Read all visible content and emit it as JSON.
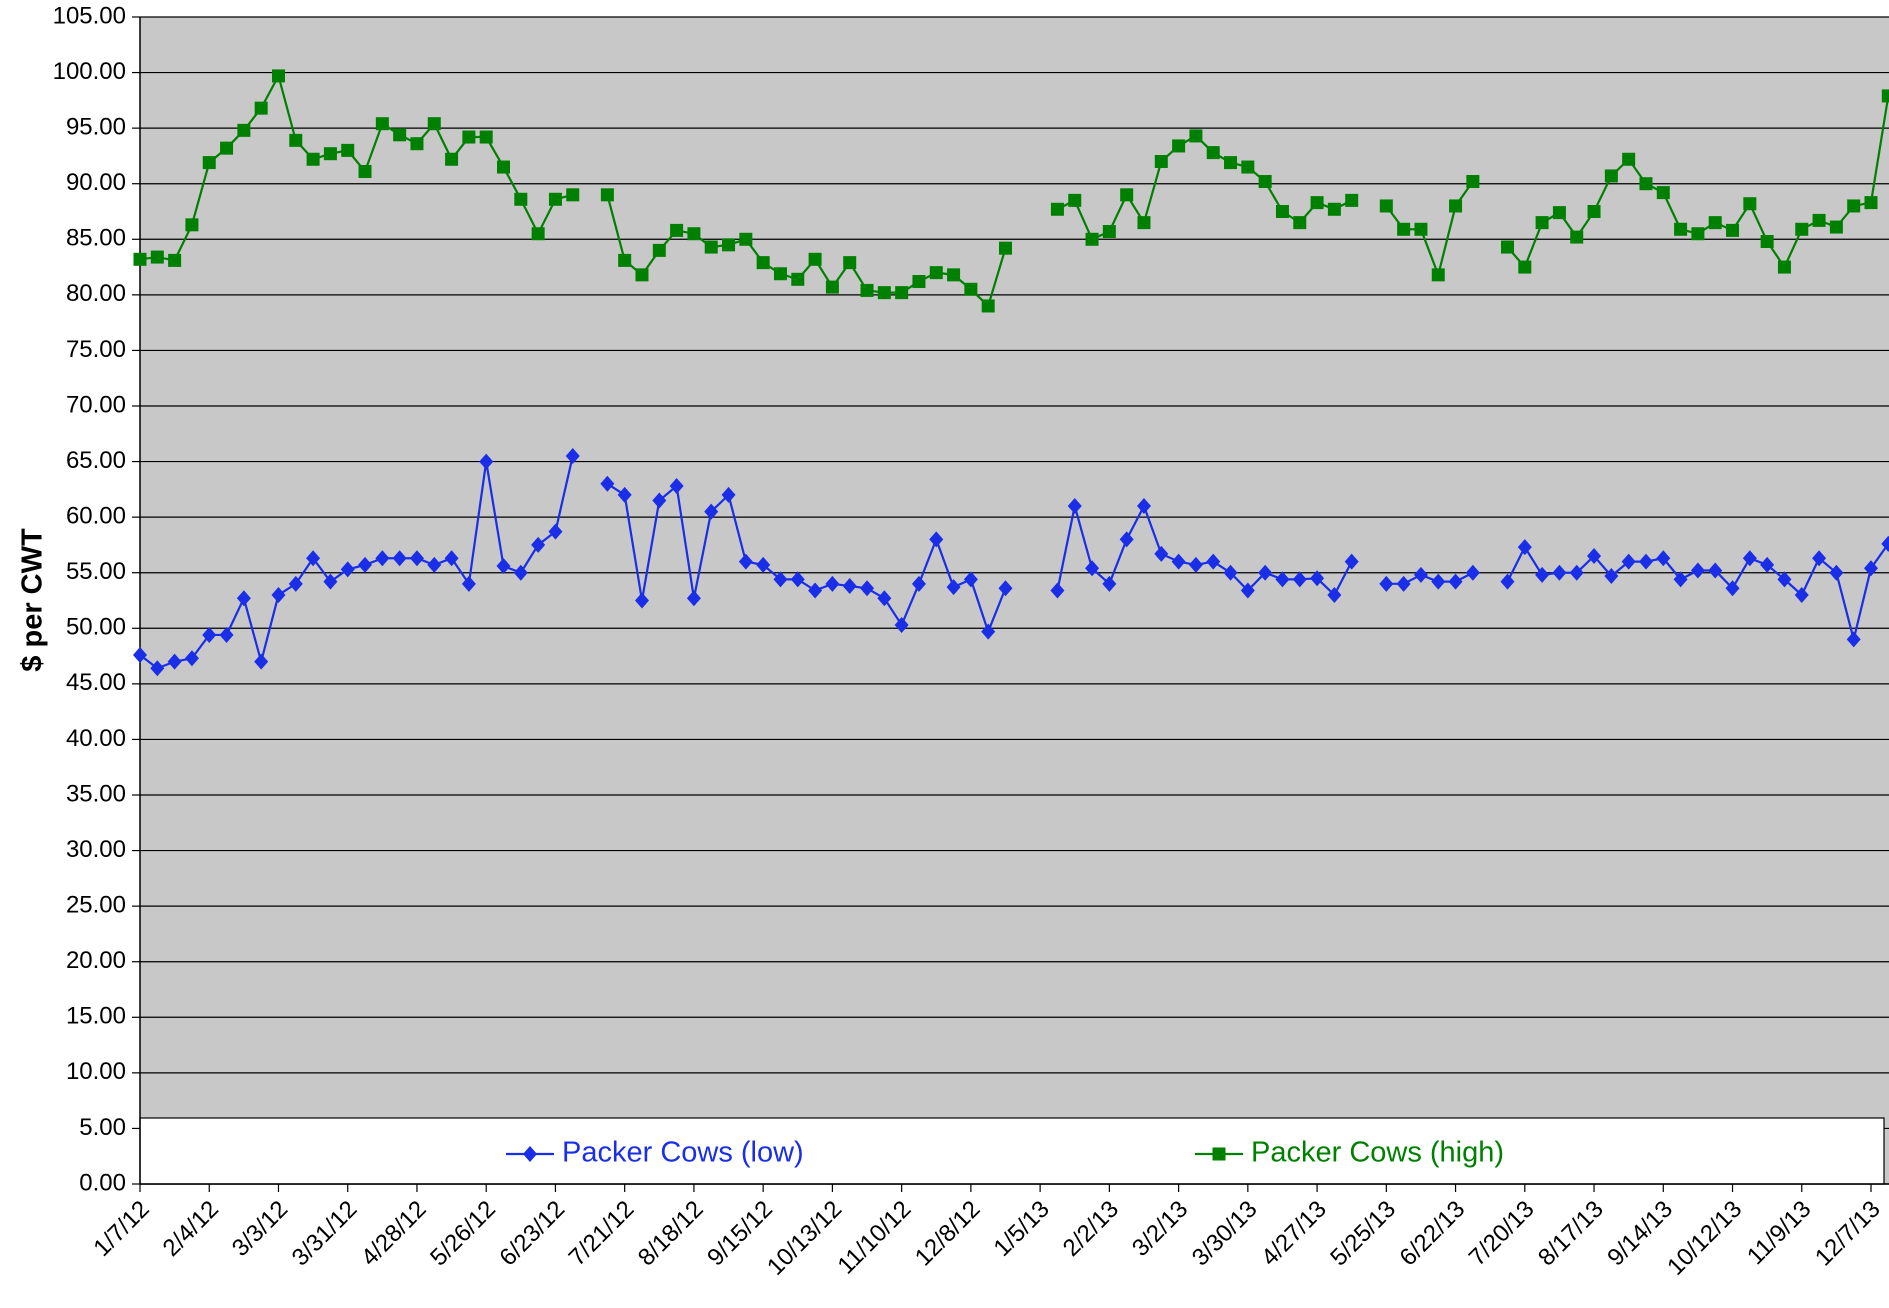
{
  "chart_data": {
    "type": "line",
    "y_label": "$ per CWT",
    "categories": [
      "1/7/12",
      null,
      null,
      null,
      "2/4/12",
      null,
      null,
      null,
      "3/3/12",
      null,
      null,
      null,
      "3/31/12",
      null,
      null,
      null,
      "4/28/12",
      null,
      null,
      null,
      "5/26/12",
      null,
      null,
      null,
      "6/23/12",
      null,
      null,
      null,
      "7/21/12",
      null,
      null,
      null,
      "8/18/12",
      null,
      null,
      null,
      "9/15/12",
      null,
      null,
      null,
      "10/13/12",
      null,
      null,
      null,
      "11/10/12",
      null,
      null,
      null,
      "12/8/12",
      null,
      null,
      null,
      "1/5/13",
      null,
      null,
      null,
      "2/2/13",
      null,
      null,
      null,
      "3/2/13",
      null,
      null,
      null,
      "3/30/13",
      null,
      null,
      null,
      "4/27/13",
      null,
      null,
      null,
      "5/25/13",
      null,
      null,
      null,
      "6/22/13",
      null,
      null,
      null,
      "7/20/13",
      null,
      null,
      null,
      "8/17/13",
      null,
      null,
      null,
      "9/14/13",
      null,
      null,
      null,
      "10/12/13",
      null,
      null,
      null,
      "11/9/13",
      null,
      null,
      null,
      "12/7/13",
      null
    ],
    "series": [
      {
        "name": "Packer Cows (low)",
        "color": "#1a2ee8",
        "marker": "diamond",
        "values": [
          47.6,
          46.4,
          47.0,
          47.3,
          49.4,
          49.4,
          52.7,
          47.0,
          53.0,
          54.0,
          56.3,
          54.2,
          55.3,
          55.7,
          56.3,
          56.3,
          56.3,
          55.7,
          56.3,
          54.0,
          65.0,
          55.6,
          55.0,
          57.5,
          58.7,
          65.5,
          null,
          63.0,
          62.0,
          52.5,
          61.5,
          62.8,
          52.7,
          60.5,
          62.0,
          56.0,
          55.7,
          54.4,
          54.4,
          53.4,
          54.0,
          53.8,
          53.6,
          52.7,
          50.3,
          54.0,
          58.0,
          53.7,
          54.4,
          49.7,
          53.6,
          null,
          null,
          53.4,
          61.0,
          55.4,
          54.0,
          58.0,
          61.0,
          56.7,
          56.0,
          55.7,
          56.0,
          55.0,
          53.4,
          55.0,
          54.4,
          54.4,
          54.5,
          53.0,
          56.0,
          null,
          54.0,
          54.0,
          54.8,
          54.2,
          54.2,
          55.0,
          null,
          54.2,
          57.3,
          54.8,
          55.0,
          55.0,
          56.5,
          54.7,
          56.0,
          56.0,
          56.3,
          54.4,
          55.2,
          55.2,
          53.6,
          56.3,
          55.7,
          54.4,
          53.0,
          56.3,
          55.0,
          49.0,
          55.4,
          57.6
        ]
      },
      {
        "name": "Packer Cows (high)",
        "color": "#008000",
        "marker": "square",
        "values": [
          83.2,
          83.4,
          83.1,
          86.3,
          91.9,
          93.2,
          94.8,
          96.8,
          99.7,
          93.9,
          92.2,
          92.7,
          93.0,
          91.1,
          95.4,
          94.4,
          93.6,
          95.4,
          92.2,
          94.2,
          94.2,
          91.5,
          88.6,
          85.5,
          88.6,
          89.0,
          null,
          89.0,
          83.1,
          81.8,
          84.0,
          85.8,
          85.5,
          84.3,
          84.5,
          85.0,
          82.9,
          81.9,
          81.4,
          83.2,
          80.7,
          82.9,
          80.4,
          80.2,
          80.2,
          81.2,
          82.0,
          81.8,
          80.5,
          79.0,
          84.2,
          null,
          null,
          87.7,
          88.5,
          85.0,
          85.7,
          89.0,
          86.5,
          92.0,
          93.4,
          94.3,
          92.8,
          91.9,
          91.5,
          90.2,
          87.5,
          86.5,
          88.3,
          87.7,
          88.5,
          null,
          88.0,
          85.9,
          85.9,
          81.8,
          88.0,
          90.2,
          null,
          84.3,
          82.5,
          86.5,
          87.4,
          85.2,
          87.5,
          90.7,
          92.2,
          90.0,
          89.2,
          85.9,
          85.5,
          86.5,
          85.8,
          88.2,
          84.8,
          82.5,
          85.9,
          86.7,
          86.1,
          88.0,
          88.3,
          97.9
        ]
      }
    ],
    "ylim": [
      0,
      105
    ],
    "yticks": [
      {
        "value": 0,
        "label": "0.00"
      },
      {
        "value": 5,
        "label": "5.00"
      },
      {
        "value": 10,
        "label": "10.00"
      },
      {
        "value": 15,
        "label": "15.00"
      },
      {
        "value": 20,
        "label": "20.00"
      },
      {
        "value": 25,
        "label": "25.00"
      },
      {
        "value": 30,
        "label": "30.00"
      },
      {
        "value": 35,
        "label": "35.00"
      },
      {
        "value": 40,
        "label": "40.00"
      },
      {
        "value": 45,
        "label": "45.00"
      },
      {
        "value": 50,
        "label": "50.00"
      },
      {
        "value": 55,
        "label": "55.00"
      },
      {
        "value": 60,
        "label": "60.00"
      },
      {
        "value": 65,
        "label": "65.00"
      },
      {
        "value": 70,
        "label": "70.00"
      },
      {
        "value": 75,
        "label": "75.00"
      },
      {
        "value": 80,
        "label": "80.00"
      },
      {
        "value": 85,
        "label": "85.00"
      },
      {
        "value": 90,
        "label": "90.00"
      },
      {
        "value": 95,
        "label": "95.00"
      },
      {
        "value": 100,
        "label": "100.00"
      },
      {
        "value": 105,
        "label": "105.00"
      }
    ],
    "grid": true,
    "legend": "bottom",
    "background": "#c8c8c8"
  }
}
